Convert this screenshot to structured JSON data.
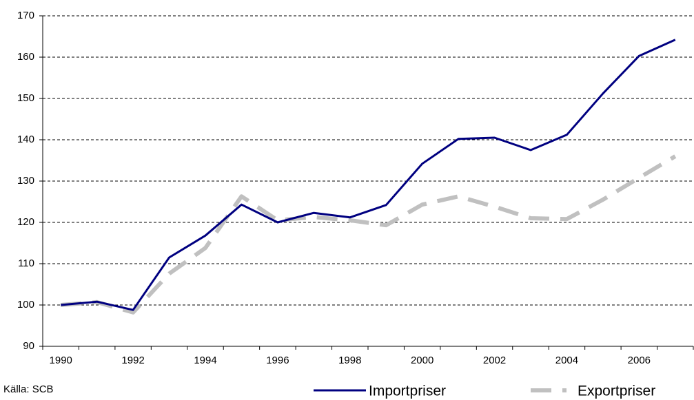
{
  "chart_data": {
    "type": "line",
    "categories": [
      "1990",
      null,
      "1992",
      null,
      "1994",
      null,
      "1996",
      null,
      "1998",
      null,
      "2000",
      null,
      "2002",
      null,
      "2004",
      null,
      "2006",
      null
    ],
    "series": [
      {
        "name": "Importpriser",
        "color": "#000080",
        "values": [
          100,
          100.8,
          98.8,
          111.5,
          116.8,
          124.3,
          120,
          122.3,
          121.2,
          124.2,
          134.2,
          140.2,
          140.5,
          137.5,
          141.2,
          151.2,
          160.3,
          164.2
        ]
      },
      {
        "name": "Exportpriser",
        "color": "#c0c0c0",
        "values": [
          100,
          100.7,
          98.2,
          107.6,
          113.8,
          126.3,
          120.5,
          121.3,
          120.5,
          119.3,
          124.3,
          126.3,
          123.8,
          121,
          120.8,
          125.5,
          130.8,
          136
        ]
      }
    ],
    "ylim": [
      90,
      170
    ],
    "yticks": [
      90,
      100,
      110,
      120,
      130,
      140,
      150,
      160,
      170
    ],
    "grid": true,
    "legend": "bottom-right",
    "annotations": [
      "Källa: SCB"
    ]
  }
}
